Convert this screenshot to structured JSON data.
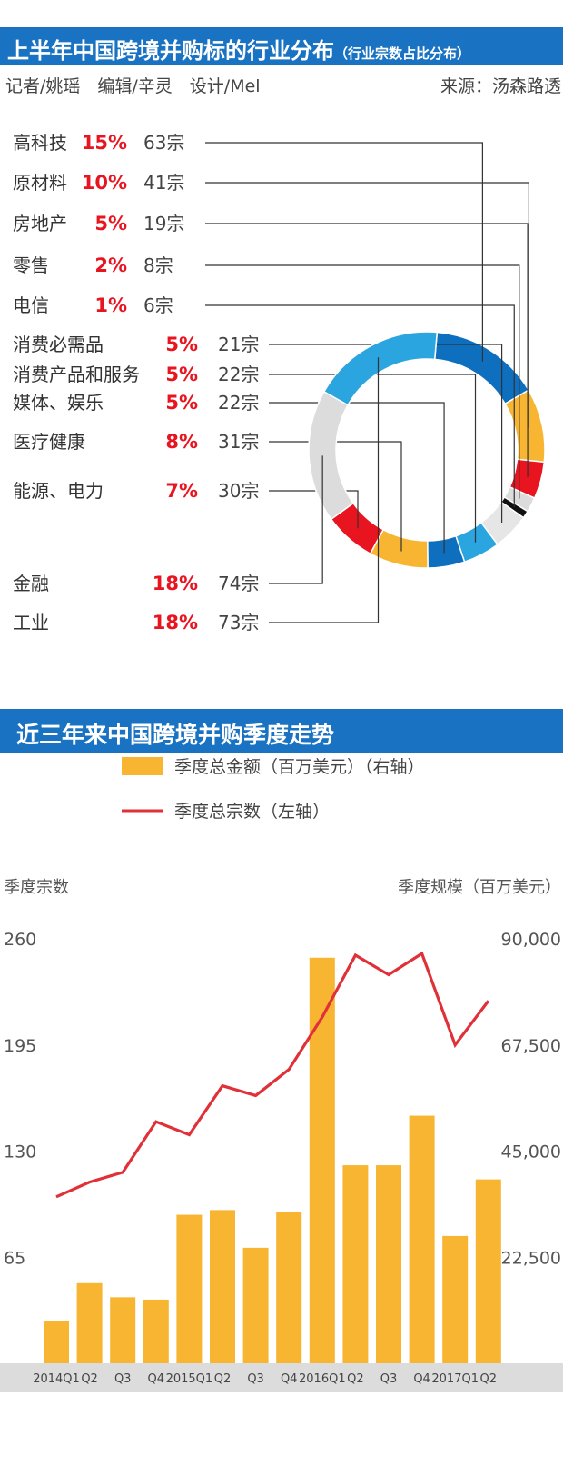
{
  "section1": {
    "title": "上半年中国跨境并购标的行业分布",
    "subtitle": "（行业宗数占比分布）",
    "credits": "记者/姚瑶　编辑/辛灵　设计/Mel",
    "source": "来源：汤森路透"
  },
  "section2": {
    "title": "近三年来中国跨境并购季度走势"
  },
  "colors": {
    "banner": "#1a73c2",
    "red": "#e8141f",
    "orange": "#f7b531",
    "blue": "#0f6fbf",
    "light_blue": "#2aa5e0",
    "gray": "#dcdcdc",
    "black": "#111111"
  },
  "chart_data": [
    {
      "type": "pie",
      "donut": true,
      "title": "上半年中国跨境并购标的行业分布",
      "subtitle": "（行业宗数占比分布）",
      "slices": [
        {
          "name": "高科技",
          "pct": "15%",
          "count": "63宗",
          "share": 15,
          "color": "#0f6fbf"
        },
        {
          "name": "原材料",
          "pct": "10%",
          "count": "41宗",
          "share": 10,
          "color": "#f7b531"
        },
        {
          "name": "房地产",
          "pct": "5%",
          "count": "19宗",
          "share": 5,
          "color": "#e8141f"
        },
        {
          "name": "零售",
          "pct": "2%",
          "count": "8宗",
          "share": 2,
          "color": "#dcdcdc"
        },
        {
          "name": "电信",
          "pct": "1%",
          "count": "6宗",
          "share": 1,
          "color": "#111111"
        },
        {
          "name": "消费必需品",
          "pct": "5%",
          "count": "21宗",
          "share": 5,
          "color": "#e6e6e6"
        },
        {
          "name": "消费产品和服务",
          "pct": "5%",
          "count": "22宗",
          "share": 5,
          "color": "#2aa5e0"
        },
        {
          "name": "媒体、娱乐",
          "pct": "5%",
          "count": "22宗",
          "share": 5,
          "color": "#0f6fbf"
        },
        {
          "name": "医疗健康",
          "pct": "8%",
          "count": "31宗",
          "share": 8,
          "color": "#f7b531"
        },
        {
          "name": "能源、电力",
          "pct": "7%",
          "count": "30宗",
          "share": 7,
          "color": "#e8141f"
        },
        {
          "name": "金融",
          "pct": "18%",
          "count": "74宗",
          "share": 18,
          "color": "#dcdcdc"
        },
        {
          "name": "工业",
          "pct": "18%",
          "count": "73宗",
          "share": 18,
          "color": "#2aa5e0"
        }
      ]
    },
    {
      "type": "bar",
      "title": "近三年来中国跨境并购季度走势",
      "categories": [
        "2014Q1",
        "Q2",
        "Q3",
        "Q4",
        "2015Q1",
        "Q2",
        "Q3",
        "Q4",
        "2016Q1",
        "Q2",
        "Q3",
        "Q4",
        "2017Q1",
        "Q2"
      ],
      "series": [
        {
          "name": "季度总金额（百万美元）（右轴）",
          "type": "bar",
          "axis": "right",
          "color": "#f7b531",
          "values": [
            9000,
            17000,
            14000,
            13500,
            31500,
            32500,
            24500,
            32000,
            86000,
            42000,
            42000,
            52500,
            27000,
            39000
          ]
        },
        {
          "name": "季度总宗数（左轴）",
          "type": "line",
          "axis": "left",
          "color": "#e03038",
          "values": [
            102,
            111,
            117,
            148,
            140,
            170,
            164,
            180,
            212,
            250,
            238,
            251,
            195,
            222
          ]
        }
      ],
      "ylabel_left": "季度宗数",
      "ylabel_right": "季度规模（百万美元）",
      "left_ticks": [
        "260",
        "195",
        "130",
        "65"
      ],
      "right_ticks": [
        "90,000",
        "67,500",
        "45,000",
        "22,500"
      ],
      "ylim_left": [
        0,
        260
      ],
      "ylim_right": [
        0,
        90000
      ]
    }
  ]
}
